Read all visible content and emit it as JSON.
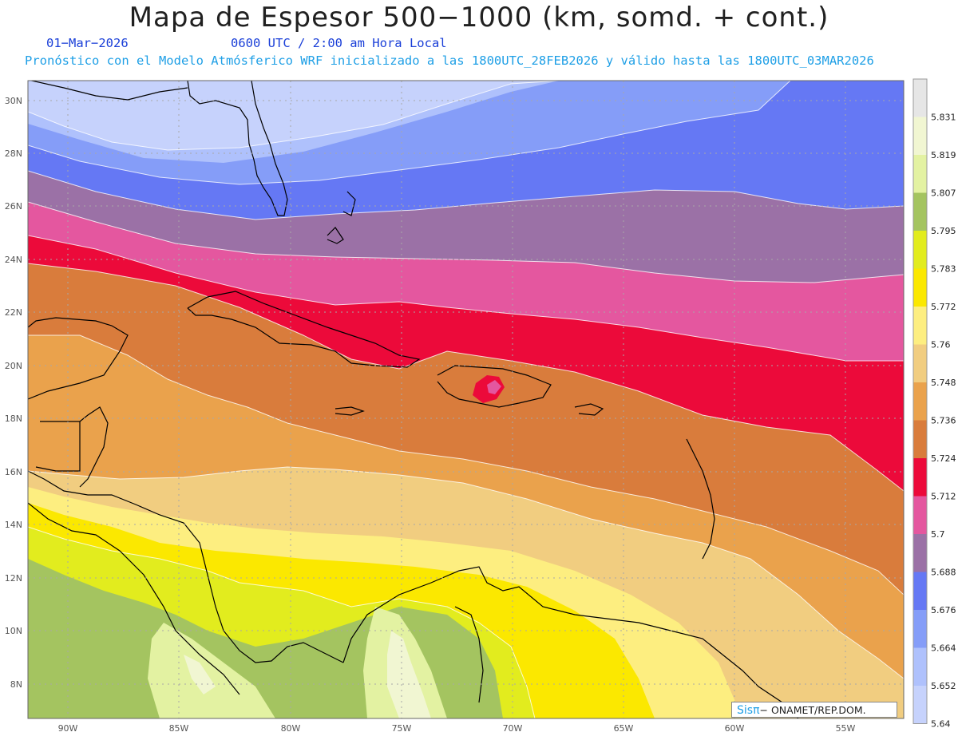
{
  "title": "Mapa de Espesor 500−1000 (km, somd. + cont.)",
  "date": "01−Mar−2026",
  "time": "0600 UTC / 2:00 am Hora Local",
  "info": "Pronóstico con el Modelo Atmósferico WRF inicializado a las 1800UTC_28FEB2026 y válido hasta las  1800UTC_03MAR2026",
  "credit": {
    "brand": "Sisπ",
    "text": "− ONAMET/REP.DOM."
  },
  "lat_labels": [
    "30N",
    "28N",
    "26N",
    "24N",
    "22N",
    "20N",
    "18N",
    "16N",
    "14N",
    "12N",
    "10N",
    "8N"
  ],
  "lon_labels": [
    "90W",
    "85W",
    "80W",
    "75W",
    "70W",
    "65W",
    "60W",
    "55W"
  ],
  "legend": {
    "labels": [
      "5.831",
      "5.819",
      "5.807",
      "5.795",
      "5.783",
      "5.772",
      "5.76",
      "5.748",
      "5.736",
      "5.724",
      "5.712",
      "5.7",
      "5.688",
      "5.676",
      "5.664",
      "5.652",
      "5.64"
    ],
    "colors_top_to_bottom": [
      "#e6e6e6",
      "#f1f6d2",
      "#e3f2a2",
      "#a4c460",
      "#e2ec1e",
      "#fbe800",
      "#fdee80",
      "#f1cd80",
      "#eaa24c",
      "#d97c3c",
      "#ec0a3a",
      "#e4579f",
      "#9b71a6",
      "#6578f4",
      "#859df8",
      "#afc1fc",
      "#c6d2fc"
    ]
  },
  "colors": {
    "land_outline": "#000000",
    "grid": "#a8a8a8"
  }
}
